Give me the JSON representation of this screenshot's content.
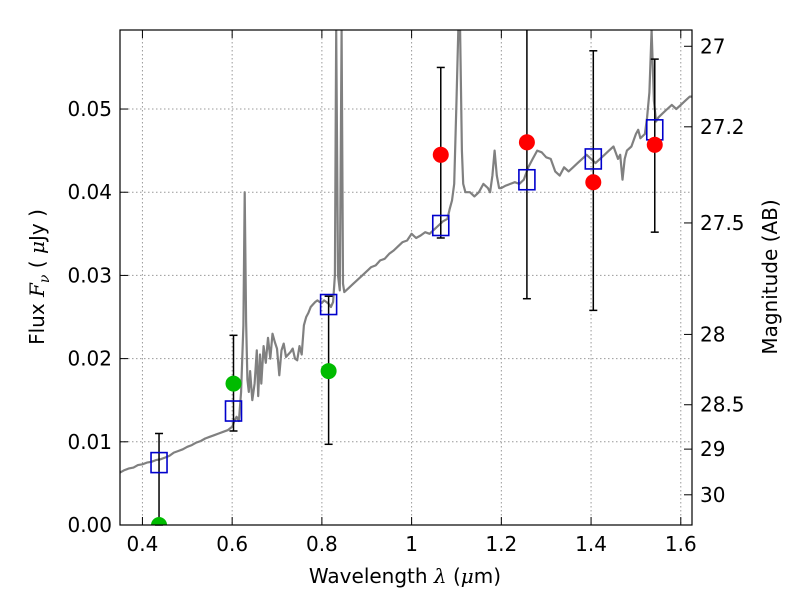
{
  "chart_data": {
    "type": "scatter",
    "xlabel": {
      "prefix": "Wavelength  ",
      "symbol": "λ",
      "unit_open": " (",
      "unit_mu": "μ",
      "unit_rest": "m)"
    },
    "ylabel": {
      "prefix": "Flux  ",
      "symbol": "F",
      "sub": "ν",
      "unit_open": "  ( ",
      "unit_mu": "μ",
      "unit_rest": "Jy )"
    },
    "y2label": "Magnitude (AB)",
    "xlim": [
      0.35,
      1.625
    ],
    "ylim": [
      0.0,
      0.0595
    ],
    "grid": true,
    "x_ticks": [
      {
        "v": 0.4,
        "label": "0.4"
      },
      {
        "v": 0.6,
        "label": "0.6"
      },
      {
        "v": 0.8,
        "label": "0.8"
      },
      {
        "v": 1.0,
        "label": "1"
      },
      {
        "v": 1.2,
        "label": "1.2"
      },
      {
        "v": 1.4,
        "label": "1.4"
      },
      {
        "v": 1.6,
        "label": "1.6"
      }
    ],
    "y_ticks": [
      {
        "v": 0.0,
        "label": "0.00"
      },
      {
        "v": 0.01,
        "label": "0.01"
      },
      {
        "v": 0.02,
        "label": "0.02"
      },
      {
        "v": 0.03,
        "label": "0.03"
      },
      {
        "v": 0.04,
        "label": "0.04"
      },
      {
        "v": 0.05,
        "label": "0.05"
      }
    ],
    "y2_ticks": [
      {
        "mag": 27,
        "label": "27"
      },
      {
        "mag": 27.2,
        "label": "27.2"
      },
      {
        "mag": 27.5,
        "label": "27.5"
      },
      {
        "mag": 28,
        "label": "28"
      },
      {
        "mag": 28.5,
        "label": "28.5"
      },
      {
        "mag": 29,
        "label": "29"
      },
      {
        "mag": 30,
        "label": "30"
      }
    ],
    "colors": {
      "spectrum": "#808080",
      "model_box": "#0000cc",
      "red_points": "#ff0000",
      "green_points": "#00bb00",
      "errorbar": "#000000",
      "grid": "#999999"
    },
    "series": [
      {
        "type": "line",
        "points": [
          [
            0.35,
            0.0063
          ],
          [
            0.36,
            0.0066
          ],
          [
            0.37,
            0.0068
          ],
          [
            0.38,
            0.0069
          ],
          [
            0.39,
            0.0072
          ],
          [
            0.4,
            0.0073
          ],
          [
            0.41,
            0.0075
          ],
          [
            0.42,
            0.0076
          ],
          [
            0.43,
            0.0078
          ],
          [
            0.44,
            0.0079
          ],
          [
            0.45,
            0.0081
          ],
          [
            0.46,
            0.0083
          ],
          [
            0.47,
            0.0087
          ],
          [
            0.48,
            0.0089
          ],
          [
            0.49,
            0.0091
          ],
          [
            0.5,
            0.0094
          ],
          [
            0.51,
            0.0096
          ],
          [
            0.52,
            0.0099
          ],
          [
            0.53,
            0.0101
          ],
          [
            0.54,
            0.0104
          ],
          [
            0.55,
            0.0106
          ],
          [
            0.56,
            0.0108
          ],
          [
            0.57,
            0.011
          ],
          [
            0.58,
            0.0112
          ],
          [
            0.59,
            0.0114
          ],
          [
            0.595,
            0.0116
          ],
          [
            0.6,
            0.0118
          ],
          [
            0.605,
            0.0125
          ],
          [
            0.61,
            0.013
          ],
          [
            0.615,
            0.0125
          ],
          [
            0.62,
            0.016
          ],
          [
            0.625,
            0.024
          ],
          [
            0.628,
            0.04
          ],
          [
            0.631,
            0.0245
          ],
          [
            0.634,
            0.0175
          ],
          [
            0.637,
            0.016
          ],
          [
            0.64,
            0.0185
          ],
          [
            0.645,
            0.015
          ],
          [
            0.65,
            0.017
          ],
          [
            0.655,
            0.021
          ],
          [
            0.658,
            0.0155
          ],
          [
            0.662,
            0.0205
          ],
          [
            0.665,
            0.017
          ],
          [
            0.67,
            0.0215
          ],
          [
            0.675,
            0.0195
          ],
          [
            0.68,
            0.0225
          ],
          [
            0.685,
            0.02
          ],
          [
            0.69,
            0.023
          ],
          [
            0.695,
            0.022
          ],
          [
            0.7,
            0.0212
          ],
          [
            0.705,
            0.018
          ],
          [
            0.71,
            0.021
          ],
          [
            0.715,
            0.0218
          ],
          [
            0.72,
            0.0202
          ],
          [
            0.725,
            0.0205
          ],
          [
            0.73,
            0.0208
          ],
          [
            0.735,
            0.0212
          ],
          [
            0.74,
            0.02
          ],
          [
            0.745,
            0.0198
          ],
          [
            0.75,
            0.0215
          ],
          [
            0.755,
            0.0205
          ],
          [
            0.76,
            0.024
          ],
          [
            0.765,
            0.025
          ],
          [
            0.77,
            0.0255
          ],
          [
            0.775,
            0.0262
          ],
          [
            0.78,
            0.0265
          ],
          [
            0.785,
            0.0268
          ],
          [
            0.79,
            0.027
          ],
          [
            0.795,
            0.0268
          ],
          [
            0.8,
            0.0267
          ],
          [
            0.805,
            0.027
          ],
          [
            0.81,
            0.0268
          ],
          [
            0.815,
            0.0266
          ],
          [
            0.82,
            0.0262
          ],
          [
            0.825,
            0.0268
          ],
          [
            0.829,
            0.03
          ],
          [
            0.832,
            0.0595
          ],
          [
            0.836,
            0.03
          ],
          [
            0.84,
            0.0282
          ],
          [
            0.844,
            0.0595
          ],
          [
            0.847,
            0.029
          ],
          [
            0.85,
            0.028
          ],
          [
            0.86,
            0.0285
          ],
          [
            0.87,
            0.029
          ],
          [
            0.88,
            0.0295
          ],
          [
            0.89,
            0.03
          ],
          [
            0.9,
            0.0305
          ],
          [
            0.91,
            0.031
          ],
          [
            0.92,
            0.0312
          ],
          [
            0.93,
            0.0318
          ],
          [
            0.94,
            0.032
          ],
          [
            0.95,
            0.0326
          ],
          [
            0.96,
            0.033
          ],
          [
            0.97,
            0.0335
          ],
          [
            0.98,
            0.034
          ],
          [
            0.99,
            0.0342
          ],
          [
            1.0,
            0.035
          ],
          [
            1.01,
            0.0345
          ],
          [
            1.02,
            0.0348
          ],
          [
            1.03,
            0.0352
          ],
          [
            1.04,
            0.035
          ],
          [
            1.05,
            0.0355
          ],
          [
            1.06,
            0.036
          ],
          [
            1.07,
            0.0365
          ],
          [
            1.08,
            0.0368
          ],
          [
            1.085,
            0.038
          ],
          [
            1.09,
            0.039
          ],
          [
            1.095,
            0.041
          ],
          [
            1.1,
            0.051
          ],
          [
            1.104,
            0.0595
          ],
          [
            1.108,
            0.0595
          ],
          [
            1.112,
            0.045
          ],
          [
            1.115,
            0.041
          ],
          [
            1.12,
            0.04
          ],
          [
            1.13,
            0.04
          ],
          [
            1.14,
            0.0395
          ],
          [
            1.15,
            0.04
          ],
          [
            1.16,
            0.041
          ],
          [
            1.17,
            0.0405
          ],
          [
            1.175,
            0.04
          ],
          [
            1.18,
            0.042
          ],
          [
            1.185,
            0.045
          ],
          [
            1.19,
            0.042
          ],
          [
            1.195,
            0.0405
          ],
          [
            1.2,
            0.0405
          ],
          [
            1.21,
            0.0408
          ],
          [
            1.22,
            0.041
          ],
          [
            1.23,
            0.0412
          ],
          [
            1.24,
            0.041
          ],
          [
            1.25,
            0.0415
          ],
          [
            1.26,
            0.043
          ],
          [
            1.27,
            0.044
          ],
          [
            1.28,
            0.045
          ],
          [
            1.29,
            0.0448
          ],
          [
            1.3,
            0.0442
          ],
          [
            1.31,
            0.044
          ],
          [
            1.32,
            0.0425
          ],
          [
            1.33,
            0.042
          ],
          [
            1.34,
            0.043
          ],
          [
            1.35,
            0.0425
          ],
          [
            1.36,
            0.043
          ],
          [
            1.37,
            0.0435
          ],
          [
            1.38,
            0.044
          ],
          [
            1.39,
            0.0445
          ],
          [
            1.4,
            0.044
          ],
          [
            1.41,
            0.0435
          ],
          [
            1.42,
            0.044
          ],
          [
            1.43,
            0.0445
          ],
          [
            1.44,
            0.045
          ],
          [
            1.45,
            0.0455
          ],
          [
            1.46,
            0.044
          ],
          [
            1.465,
            0.0445
          ],
          [
            1.47,
            0.0415
          ],
          [
            1.475,
            0.044
          ],
          [
            1.48,
            0.045
          ],
          [
            1.49,
            0.0455
          ],
          [
            1.5,
            0.047
          ],
          [
            1.505,
            0.0475
          ],
          [
            1.51,
            0.0465
          ],
          [
            1.52,
            0.047
          ],
          [
            1.525,
            0.049
          ],
          [
            1.53,
            0.052
          ],
          [
            1.535,
            0.0595
          ],
          [
            1.54,
            0.051
          ],
          [
            1.545,
            0.0485
          ],
          [
            1.55,
            0.049
          ],
          [
            1.56,
            0.0495
          ],
          [
            1.57,
            0.05
          ],
          [
            1.58,
            0.0505
          ],
          [
            1.59,
            0.05
          ],
          [
            1.6,
            0.0505
          ],
          [
            1.61,
            0.051
          ],
          [
            1.62,
            0.0515
          ],
          [
            1.625,
            0.0515
          ]
        ]
      },
      {
        "type": "box_markers",
        "points": [
          [
            0.437,
            0.0075
          ],
          [
            0.603,
            0.0137
          ],
          [
            0.815,
            0.0265
          ],
          [
            1.065,
            0.036
          ],
          [
            1.257,
            0.0415
          ],
          [
            1.405,
            0.044
          ],
          [
            1.542,
            0.0475
          ]
        ]
      },
      {
        "type": "errorbar_points",
        "color": "green",
        "points": [
          {
            "x": 0.437,
            "y": 0.0,
            "ylo": 0.0,
            "yhi": 0.011
          },
          {
            "x": 0.603,
            "y": 0.017,
            "ylo": 0.0113,
            "yhi": 0.0228
          },
          {
            "x": 0.815,
            "y": 0.0185,
            "ylo": 0.0097,
            "yhi": 0.0275
          }
        ]
      },
      {
        "type": "errorbar_points",
        "color": "red",
        "points": [
          {
            "x": 1.065,
            "y": 0.0445,
            "ylo": 0.0345,
            "yhi": 0.055
          },
          {
            "x": 1.257,
            "y": 0.046,
            "ylo": 0.0272,
            "yhi": 0.06
          },
          {
            "x": 1.405,
            "y": 0.0412,
            "ylo": 0.0258,
            "yhi": 0.057
          },
          {
            "x": 1.542,
            "y": 0.0457,
            "ylo": 0.0352,
            "yhi": 0.056
          }
        ]
      }
    ]
  }
}
